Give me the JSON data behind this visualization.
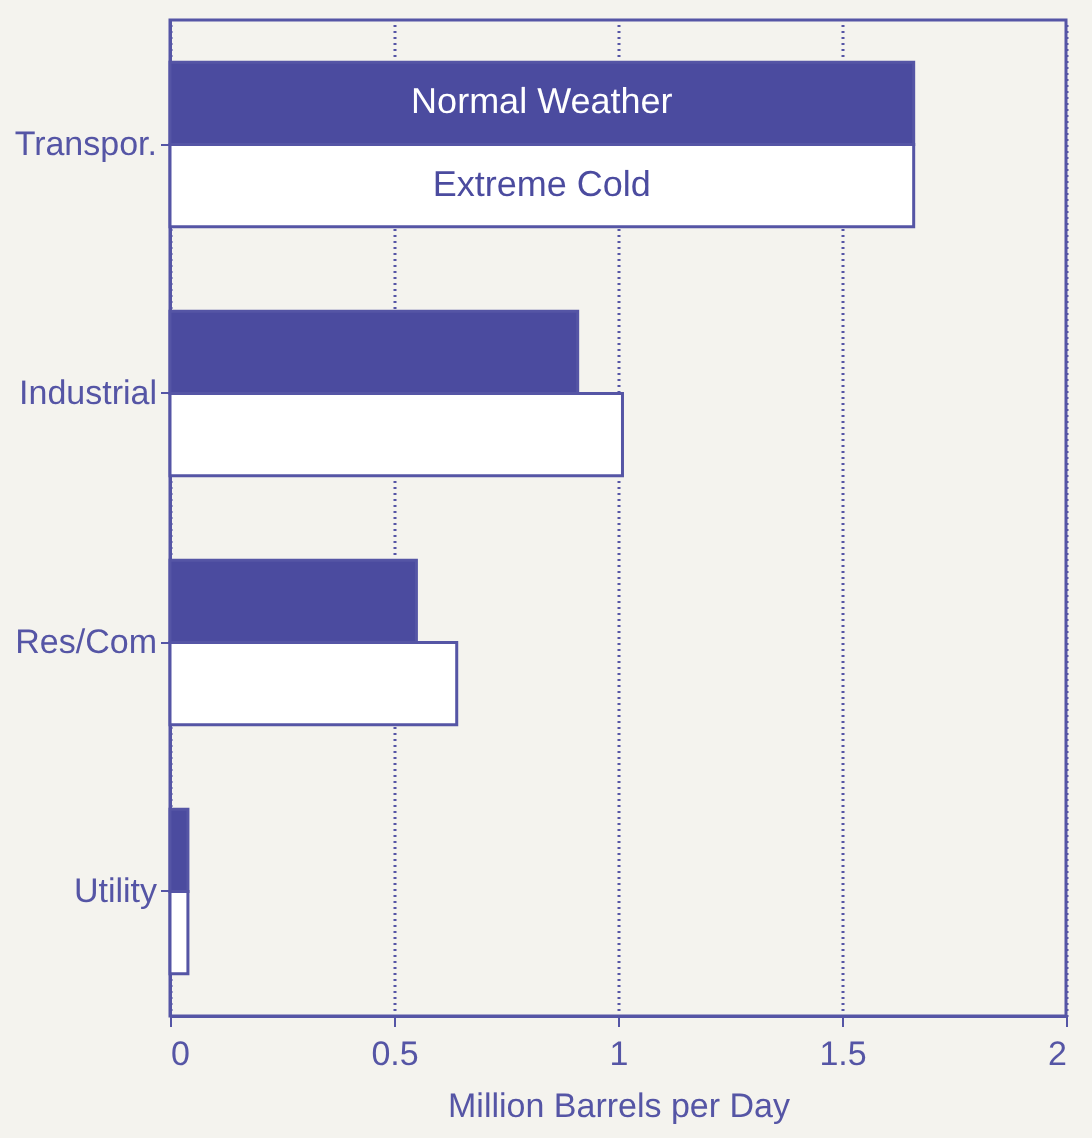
{
  "chart_data": {
    "type": "bar",
    "orientation": "horizontal",
    "categories": [
      "Transpor.",
      "Industrial",
      "Res/Com",
      "Utility"
    ],
    "series": [
      {
        "name": "Normal Weather",
        "color": "#4b4b9f",
        "values": [
          1.66,
          0.91,
          0.55,
          0.04
        ]
      },
      {
        "name": "Extreme Cold",
        "color": "#ffffff",
        "values": [
          1.66,
          1.01,
          0.64,
          0.04
        ]
      }
    ],
    "xlabel": "Million Barrels per Day",
    "xlim": [
      0,
      2
    ],
    "xticks": [
      0,
      0.5,
      1,
      1.5,
      2
    ],
    "grid": "x",
    "legend": false
  }
}
